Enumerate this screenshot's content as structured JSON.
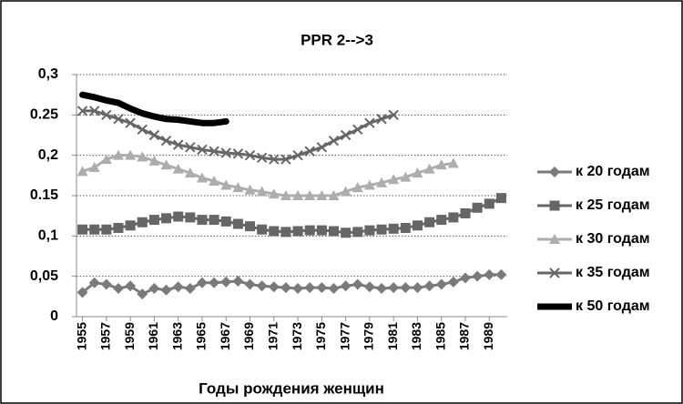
{
  "chart_data": {
    "type": "line",
    "title": "PPR 2-->3",
    "x_label": "Годы рождения женщин",
    "x": [
      1955,
      1956,
      1957,
      1958,
      1959,
      1960,
      1961,
      1962,
      1963,
      1964,
      1965,
      1966,
      1967,
      1968,
      1969,
      1970,
      1971,
      1972,
      1973,
      1974,
      1975,
      1976,
      1977,
      1978,
      1979,
      1980,
      1981,
      1982,
      1983,
      1984,
      1985,
      1986,
      1987,
      1988,
      1989,
      1990
    ],
    "xlim": [
      1954.5,
      1990.5
    ],
    "xticks": [
      1955,
      1957,
      1959,
      1961,
      1963,
      1965,
      1967,
      1969,
      1971,
      1973,
      1975,
      1977,
      1979,
      1981,
      1983,
      1985,
      1987,
      1989
    ],
    "ylim": [
      0,
      0.3
    ],
    "yticks": [
      0,
      {
        "value": 0.05,
        "label": "0,05"
      },
      {
        "value": 0.1,
        "label": "0,1"
      },
      0.15,
      {
        "value": 0.2,
        "label": "0,2"
      },
      0.25,
      {
        "value": 0.3,
        "label": "0,3"
      }
    ],
    "grid": true,
    "legend": "right",
    "series": [
      {
        "name": "к 20 годам",
        "color": "#7a7a7a",
        "marker": "diamond",
        "values": [
          0.03,
          0.042,
          0.04,
          0.035,
          0.038,
          0.028,
          0.035,
          0.033,
          0.037,
          0.035,
          0.042,
          0.042,
          0.043,
          0.044,
          0.04,
          0.038,
          0.037,
          0.036,
          0.035,
          0.036,
          0.036,
          0.035,
          0.038,
          0.04,
          0.037,
          0.035,
          0.036,
          0.036,
          0.036,
          0.038,
          0.04,
          0.043,
          0.048,
          0.05,
          0.052,
          0.052
        ]
      },
      {
        "name": "к 25 годам",
        "color": "#666666",
        "marker": "square",
        "values": [
          0.108,
          0.108,
          0.108,
          0.11,
          0.113,
          0.117,
          0.12,
          0.122,
          0.124,
          0.123,
          0.12,
          0.12,
          0.118,
          0.115,
          0.112,
          0.108,
          0.106,
          0.105,
          0.106,
          0.107,
          0.107,
          0.106,
          0.104,
          0.105,
          0.107,
          0.108,
          0.109,
          0.11,
          0.113,
          0.117,
          0.12,
          0.123,
          0.128,
          0.135,
          0.14,
          0.147
        ]
      },
      {
        "name": "к 30 годам",
        "color": "#adadad",
        "marker": "triangle",
        "values": [
          0.18,
          0.185,
          0.195,
          0.2,
          0.2,
          0.198,
          0.193,
          0.188,
          0.183,
          0.178,
          0.172,
          0.168,
          0.163,
          0.16,
          0.157,
          0.155,
          0.152,
          0.15,
          0.15,
          0.15,
          0.15,
          0.15,
          0.155,
          0.16,
          0.163,
          0.166,
          0.17,
          0.173,
          0.178,
          0.183,
          0.188,
          0.19,
          null,
          null,
          null,
          null
        ]
      },
      {
        "name": "к 35 годам",
        "color": "#666666",
        "marker": "x",
        "values": [
          0.255,
          0.255,
          0.25,
          0.245,
          0.24,
          0.232,
          0.225,
          0.218,
          0.213,
          0.21,
          0.207,
          0.205,
          0.203,
          0.202,
          0.2,
          0.197,
          0.195,
          0.195,
          0.2,
          0.205,
          0.21,
          0.218,
          0.225,
          0.232,
          0.24,
          0.245,
          0.25,
          null,
          null,
          null,
          null,
          null,
          null,
          null,
          null,
          null
        ]
      },
      {
        "name": "к 50 годам",
        "color": "#000000",
        "marker": "none",
        "values": [
          0.275,
          0.272,
          0.268,
          0.265,
          0.258,
          0.252,
          0.248,
          0.245,
          0.244,
          0.242,
          0.24,
          0.24,
          0.242,
          null,
          null,
          null,
          null,
          null,
          null,
          null,
          null,
          null,
          null,
          null,
          null,
          null,
          null,
          null,
          null,
          null,
          null,
          null,
          null,
          null,
          null,
          null
        ]
      }
    ]
  }
}
